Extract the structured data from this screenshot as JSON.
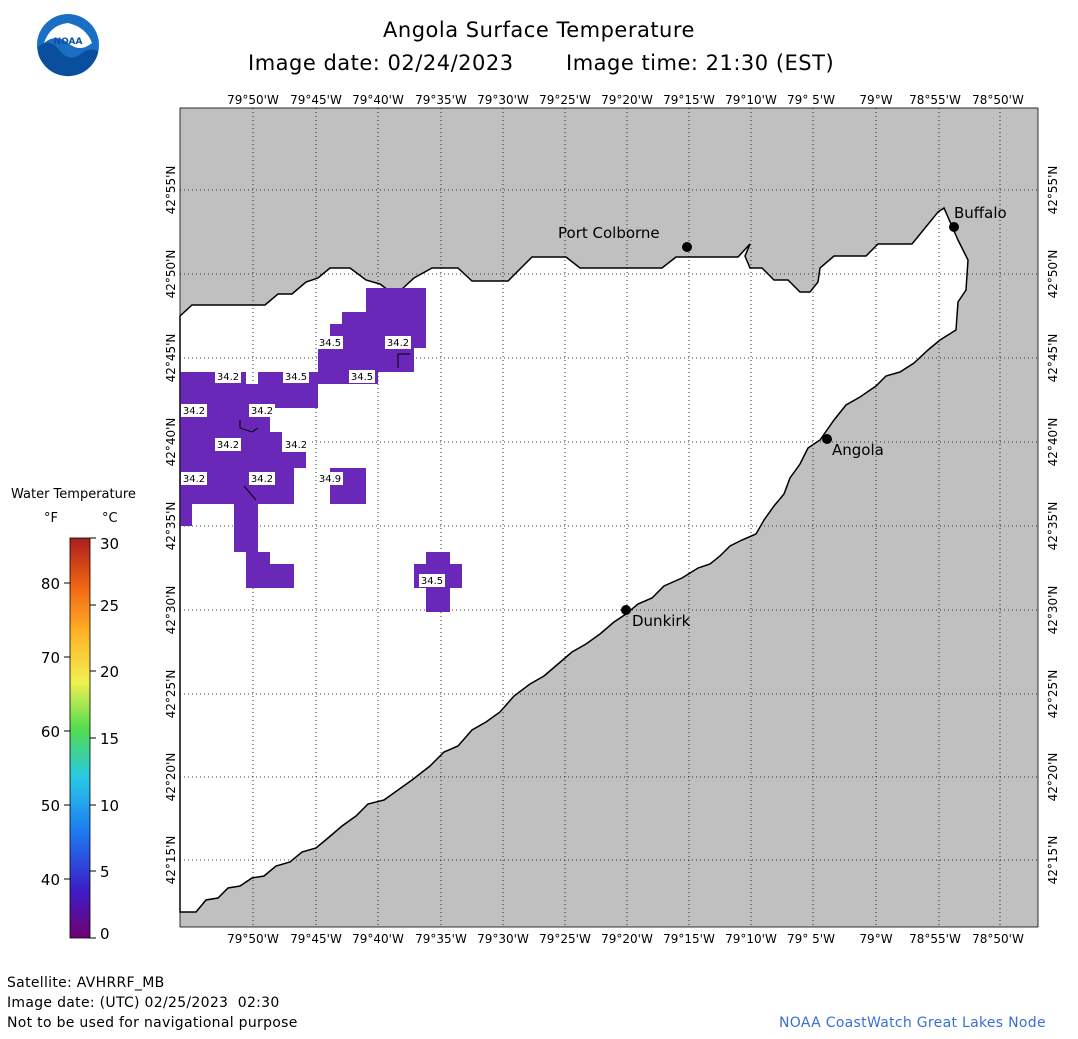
{
  "header": {
    "title": "Angola Surface Temperature",
    "image_date": "Image date: 02/24/2023",
    "image_time": "Image time: 21:30 (EST)"
  },
  "logo": {
    "text": "NOAA"
  },
  "map": {
    "lon_labels": [
      "79°50'W",
      "79°45'W",
      "79°40'W",
      "79°35'W",
      "79°30'W",
      "79°25'W",
      "79°20'W",
      "79°15'W",
      "79°10'W",
      "79° 5'W",
      "79°W",
      "78°55'W",
      "78°50'W"
    ],
    "lat_labels": [
      "42°55'N",
      "42°50'N",
      "42°45'N",
      "42°40'N",
      "42°35'N",
      "42°30'N",
      "42°25'N",
      "42°20'N",
      "42°15'N"
    ],
    "cities": [
      {
        "name": "Port Colborne"
      },
      {
        "name": "Buffalo"
      },
      {
        "name": "Angola"
      },
      {
        "name": "Dunkirk"
      }
    ],
    "value_labels": [
      "34.5",
      "34.2",
      "34.2",
      "34.5",
      "34.5",
      "34.2",
      "34.2",
      "34.2",
      "34.2",
      "34.2",
      "34.9",
      "34.2",
      "34.5"
    ],
    "colors": {
      "land": "#c0c0c0",
      "water": "#ffffff",
      "sst": "#6a28b8",
      "coast": "#000000"
    }
  },
  "legend": {
    "title": "Water Temperature",
    "unit_f": "°F",
    "unit_c": "°C",
    "f_ticks": [
      "80",
      "70",
      "60",
      "50",
      "40"
    ],
    "c_ticks": [
      "30",
      "25",
      "20",
      "15",
      "10",
      "5",
      "0"
    ],
    "colors": [
      "#720072",
      "#3c1ec8",
      "#1e78f0",
      "#28c8e6",
      "#50dc50",
      "#f0f050",
      "#ffb428",
      "#f06414",
      "#aa1e1e"
    ]
  },
  "footer": {
    "satellite": "Satellite: AVHRRF_MB",
    "utc_date": "Image date: (UTC) 02/25/2023  02:30",
    "disclaimer": "Not to be used for navigational purpose",
    "credit": "NOAA CoastWatch Great Lakes Node"
  }
}
